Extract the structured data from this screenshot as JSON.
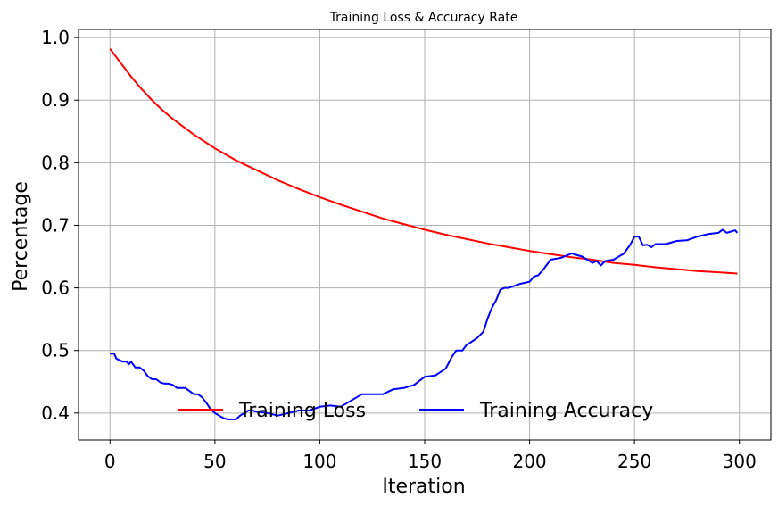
{
  "chart_data": {
    "type": "line",
    "title": "Training Loss & Accuracy Rate",
    "xlabel": "Iteration",
    "ylabel": "Percentage",
    "xlim": [
      -15,
      315
    ],
    "ylim": [
      0.357,
      1.013
    ],
    "xticks": [
      0,
      50,
      100,
      150,
      200,
      250,
      300
    ],
    "yticks": [
      0.4,
      0.5,
      0.6,
      0.7,
      0.8,
      0.9,
      1.0
    ],
    "ytick_labels": [
      "0.4",
      "0.5",
      "0.6",
      "0.7",
      "0.8",
      "0.9",
      "1.0"
    ],
    "grid": true,
    "legend_position": "lower-center",
    "series": [
      {
        "name": "Training Loss",
        "color": "#ff0000",
        "x": [
          0,
          5,
          10,
          15,
          20,
          25,
          30,
          40,
          50,
          60,
          70,
          80,
          90,
          100,
          110,
          120,
          130,
          140,
          150,
          160,
          170,
          180,
          190,
          200,
          210,
          220,
          230,
          240,
          250,
          260,
          270,
          280,
          290,
          299
        ],
        "y": [
          0.982,
          0.96,
          0.938,
          0.918,
          0.9,
          0.884,
          0.87,
          0.845,
          0.823,
          0.804,
          0.788,
          0.772,
          0.758,
          0.745,
          0.733,
          0.722,
          0.711,
          0.702,
          0.693,
          0.685,
          0.678,
          0.671,
          0.665,
          0.659,
          0.654,
          0.649,
          0.645,
          0.64,
          0.637,
          0.633,
          0.63,
          0.627,
          0.625,
          0.623
        ]
      },
      {
        "name": "Training Accuracy",
        "color": "#0000ff",
        "x": [
          0,
          2,
          3,
          6,
          7,
          8,
          9,
          10,
          11,
          12,
          14,
          16,
          18,
          20,
          22,
          24,
          26,
          28,
          30,
          32,
          34,
          36,
          38,
          40,
          42,
          44,
          46,
          48,
          50,
          52,
          54,
          56,
          58,
          60,
          62,
          64,
          66,
          68,
          70,
          75,
          80,
          85,
          90,
          95,
          100,
          105,
          110,
          115,
          120,
          125,
          130,
          135,
          140,
          145,
          150,
          155,
          160,
          163,
          165,
          168,
          170,
          172,
          175,
          178,
          180,
          182,
          184,
          186,
          188,
          190,
          195,
          200,
          202,
          204,
          206,
          208,
          210,
          215,
          220,
          225,
          230,
          232,
          234,
          236,
          240,
          245,
          248,
          250,
          252,
          254,
          256,
          258,
          260,
          265,
          270,
          275,
          280,
          285,
          290,
          292,
          294,
          296,
          298,
          299
        ],
        "y": [
          0.495,
          0.495,
          0.487,
          0.482,
          0.482,
          0.482,
          0.478,
          0.482,
          0.478,
          0.473,
          0.473,
          0.468,
          0.459,
          0.454,
          0.454,
          0.449,
          0.447,
          0.447,
          0.445,
          0.44,
          0.44,
          0.44,
          0.435,
          0.43,
          0.43,
          0.425,
          0.416,
          0.406,
          0.4,
          0.396,
          0.392,
          0.39,
          0.39,
          0.39,
          0.396,
          0.4,
          0.404,
          0.404,
          0.402,
          0.4,
          0.396,
          0.4,
          0.404,
          0.404,
          0.41,
          0.412,
          0.41,
          0.42,
          0.43,
          0.43,
          0.43,
          0.438,
          0.44,
          0.445,
          0.458,
          0.46,
          0.471,
          0.49,
          0.5,
          0.5,
          0.509,
          0.513,
          0.52,
          0.53,
          0.551,
          0.568,
          0.58,
          0.597,
          0.6,
          0.6,
          0.606,
          0.61,
          0.618,
          0.62,
          0.627,
          0.636,
          0.645,
          0.648,
          0.655,
          0.65,
          0.64,
          0.643,
          0.636,
          0.643,
          0.645,
          0.655,
          0.669,
          0.682,
          0.682,
          0.668,
          0.669,
          0.665,
          0.67,
          0.67,
          0.675,
          0.676,
          0.682,
          0.686,
          0.688,
          0.693,
          0.688,
          0.69,
          0.692,
          0.688
        ]
      }
    ]
  }
}
